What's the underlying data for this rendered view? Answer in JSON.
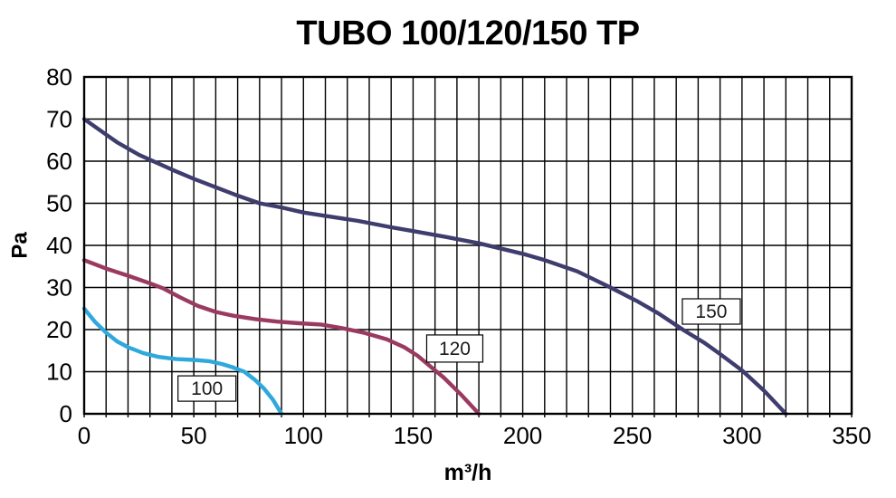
{
  "title": "TUBO 100/120/150 TP",
  "colors": {
    "background": "#ffffff",
    "grid": "#000000",
    "axis_border": "#000000",
    "tick_text": "#000000",
    "label_box_bg": "#ffffff",
    "label_box_border": "#000000",
    "label_box_text": "#1a1a1a"
  },
  "chart_data": {
    "type": "line",
    "title": "TUBO 100/120/150 TP",
    "xlabel": "m³/h",
    "ylabel": "Pa",
    "xlim": [
      0,
      350
    ],
    "ylim": [
      0,
      80
    ],
    "x_major_ticks": [
      0,
      50,
      100,
      150,
      200,
      250,
      300,
      350
    ],
    "y_major_ticks": [
      0,
      10,
      20,
      30,
      40,
      50,
      60,
      70,
      80
    ],
    "grid": true,
    "grid_step_x": 10,
    "grid_step_y": 10,
    "legend_position": "inline-boxed-labels-on-curves",
    "series": [
      {
        "name": "150",
        "color": "#3e3d6e",
        "points": [
          [
            0,
            70
          ],
          [
            15,
            64.5
          ],
          [
            25,
            61.5
          ],
          [
            40,
            58
          ],
          [
            50,
            55.8
          ],
          [
            60,
            53.8
          ],
          [
            70,
            51.8
          ],
          [
            80,
            50
          ],
          [
            90,
            49
          ],
          [
            100,
            47.8
          ],
          [
            110,
            47
          ],
          [
            125,
            45.8
          ],
          [
            140,
            44.3
          ],
          [
            150,
            43.4
          ],
          [
            165,
            42
          ],
          [
            180,
            40.5
          ],
          [
            200,
            38
          ],
          [
            210,
            36.5
          ],
          [
            225,
            33.8
          ],
          [
            240,
            30
          ],
          [
            252,
            26.8
          ],
          [
            262,
            23.8
          ],
          [
            273,
            20
          ],
          [
            283,
            16.8
          ],
          [
            290,
            14.2
          ],
          [
            300,
            10.3
          ],
          [
            310,
            5.5
          ],
          [
            320,
            0
          ]
        ],
        "label_box": {
          "x": 286,
          "y": 24.3,
          "w": 64,
          "h": 28
        }
      },
      {
        "name": "120",
        "color": "#9b3a60",
        "points": [
          [
            0,
            36.5
          ],
          [
            10,
            34.5
          ],
          [
            20,
            32.8
          ],
          [
            30,
            31
          ],
          [
            36,
            29.8
          ],
          [
            44,
            27.6
          ],
          [
            52,
            25.6
          ],
          [
            60,
            24.2
          ],
          [
            68,
            23.3
          ],
          [
            78,
            22.5
          ],
          [
            88,
            21.9
          ],
          [
            98,
            21.5
          ],
          [
            108,
            21.2
          ],
          [
            118,
            20.3
          ],
          [
            128,
            19.2
          ],
          [
            138,
            17.7
          ],
          [
            146,
            15.8
          ],
          [
            152,
            13.8
          ],
          [
            158,
            11.2
          ],
          [
            164,
            8.6
          ],
          [
            172,
            4.5
          ],
          [
            180,
            0
          ]
        ],
        "label_box": {
          "x": 169,
          "y": 15.5,
          "w": 62,
          "h": 30
        }
      },
      {
        "name": "100",
        "color": "#2fa8dc",
        "points": [
          [
            0,
            25
          ],
          [
            5,
            21.8
          ],
          [
            10,
            19.3
          ],
          [
            15,
            17.2
          ],
          [
            20,
            15.8
          ],
          [
            27,
            14.4
          ],
          [
            34,
            13.5
          ],
          [
            42,
            13
          ],
          [
            50,
            12.8
          ],
          [
            57,
            12.5
          ],
          [
            63,
            11.8
          ],
          [
            68,
            11
          ],
          [
            73,
            10
          ],
          [
            78,
            8
          ],
          [
            82,
            6
          ],
          [
            86,
            3.4
          ],
          [
            90,
            0
          ]
        ],
        "label_box": {
          "x": 56,
          "y": 6,
          "w": 64,
          "h": 28
        }
      }
    ]
  }
}
